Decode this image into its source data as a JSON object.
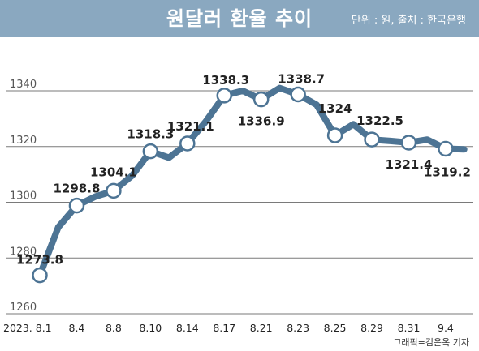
{
  "header": {
    "title": "원달러 환율 추이",
    "source": "단위 : 원, 출처 : 한국은행"
  },
  "credit": "그래픽=김은옥 기자",
  "colors": {
    "header_bg": "#8aa8c0",
    "line": "#4d7494",
    "marker_fill": "#ffffff",
    "grid": "#7a7a7a"
  },
  "chart_data": {
    "type": "line",
    "title": "원달러 환율 추이",
    "unit_note": "단위 : 원, 출처 : 한국은행",
    "xlabel": "",
    "ylabel": "",
    "ylim": [
      1260,
      1345
    ],
    "yticks": [
      1260,
      1280,
      1300,
      1320,
      1340
    ],
    "grid": true,
    "legend": "none",
    "x_ticks": [
      "2023. 8.1",
      "8.4",
      "8.8",
      "8.10",
      "8.14",
      "8.17",
      "8.21",
      "8.23",
      "8.25",
      "8.29",
      "8.31",
      "9.4"
    ],
    "series": [
      {
        "points": [
          {
            "x": 0,
            "y": 1273.8,
            "label": "1273.8",
            "marker": true
          },
          {
            "x": 0.5,
            "y": 1291
          },
          {
            "x": 1,
            "y": 1298.8,
            "label": "1298.8",
            "marker": true
          },
          {
            "x": 1.5,
            "y": 1302
          },
          {
            "x": 2,
            "y": 1304.1,
            "label": "1304.1",
            "marker": true
          },
          {
            "x": 2.5,
            "y": 1309.5
          },
          {
            "x": 3,
            "y": 1318.3,
            "label": "1318.3",
            "marker": true
          },
          {
            "x": 3.5,
            "y": 1316
          },
          {
            "x": 4,
            "y": 1321.1,
            "label": "1321.1",
            "marker": true
          },
          {
            "x": 4.5,
            "y": 1329
          },
          {
            "x": 5,
            "y": 1338.3,
            "label": "1338.3",
            "marker": true
          },
          {
            "x": 5.5,
            "y": 1340
          },
          {
            "x": 6,
            "y": 1336.9,
            "label": "1336.9",
            "marker": true
          },
          {
            "x": 6.5,
            "y": 1341
          },
          {
            "x": 7,
            "y": 1338.7,
            "label": "1338.7",
            "marker": true
          },
          {
            "x": 7.5,
            "y": 1335
          },
          {
            "x": 8,
            "y": 1324,
            "label": "1324",
            "marker": true
          },
          {
            "x": 8.5,
            "y": 1328
          },
          {
            "x": 9,
            "y": 1322.5,
            "label": "1322.5",
            "marker": true
          },
          {
            "x": 9.5,
            "y": 1322
          },
          {
            "x": 10,
            "y": 1321.4,
            "label": "1321.4",
            "marker": true
          },
          {
            "x": 10.5,
            "y": 1322.5
          },
          {
            "x": 11,
            "y": 1319.2,
            "label": "1319.2",
            "marker": true
          },
          {
            "x": 11.5,
            "y": 1319
          }
        ]
      }
    ]
  }
}
